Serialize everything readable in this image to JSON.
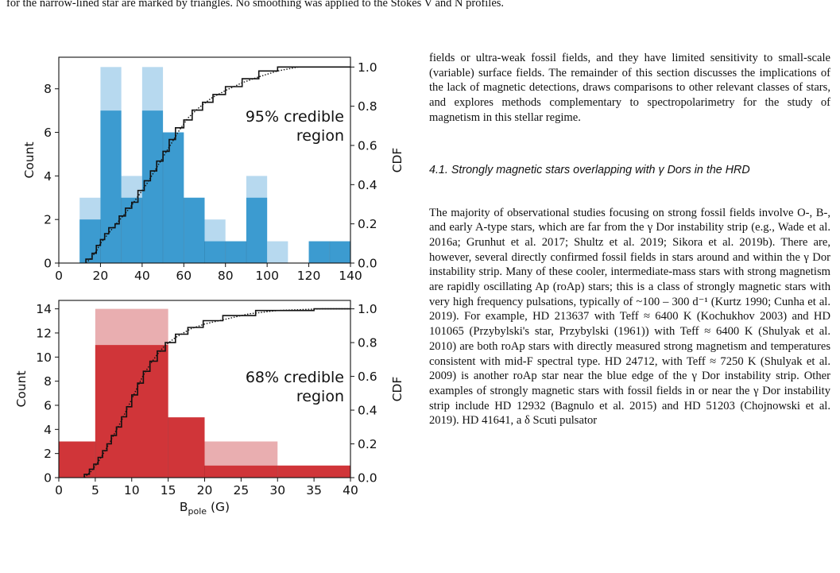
{
  "caption": "for the narrow-lined star are marked by triangles. No smoothing was applied to the Stokes V and N profiles.",
  "chart_data": [
    {
      "type": "bar",
      "panel": "top",
      "annotation": [
        "95% credible",
        "region"
      ],
      "xlabel": "",
      "ylabel": "Count",
      "y2label": "CDF",
      "xlim": [
        0,
        140
      ],
      "ylim": [
        0,
        9.45
      ],
      "y2lim": [
        0,
        1.05
      ],
      "xticks": [
        "0",
        "20",
        "40",
        "60",
        "80",
        "100",
        "120",
        "140"
      ],
      "xtickvals": [
        0,
        20,
        40,
        60,
        80,
        100,
        120,
        140
      ],
      "yticks": [
        "0",
        "2",
        "4",
        "6",
        "8"
      ],
      "ytickvals": [
        0,
        2,
        4,
        6,
        8
      ],
      "y2ticks": [
        "0.0",
        "0.2",
        "0.4",
        "0.6",
        "0.8",
        "1.0"
      ],
      "y2tickvals": [
        0,
        0.2,
        0.4,
        0.6,
        0.8,
        1.0
      ],
      "bin_edges": [
        0,
        10,
        20,
        30,
        40,
        50,
        60,
        70,
        80,
        90,
        100,
        110,
        120,
        130,
        140
      ],
      "series": [
        {
          "values": [
            0,
            3,
            9,
            4,
            9,
            6,
            3,
            2,
            1,
            4,
            1,
            0,
            1,
            1
          ],
          "color": "#b7d9ef"
        },
        {
          "values": [
            0,
            2,
            7,
            3,
            7,
            6,
            3,
            1,
            1,
            3,
            0,
            0,
            1,
            1
          ],
          "color": "#3c9bd0"
        }
      ],
      "cdf_solid": [
        [
          13,
          0
        ],
        [
          13,
          0.02
        ],
        [
          16,
          0.02
        ],
        [
          16,
          0.05
        ],
        [
          18,
          0.05
        ],
        [
          18,
          0.09
        ],
        [
          20,
          0.09
        ],
        [
          20,
          0.12
        ],
        [
          22,
          0.12
        ],
        [
          22,
          0.15
        ],
        [
          24,
          0.15
        ],
        [
          24,
          0.18
        ],
        [
          27,
          0.18
        ],
        [
          27,
          0.2
        ],
        [
          29,
          0.2
        ],
        [
          29,
          0.24
        ],
        [
          32,
          0.24
        ],
        [
          32,
          0.28
        ],
        [
          35,
          0.28
        ],
        [
          35,
          0.31
        ],
        [
          38,
          0.31
        ],
        [
          38,
          0.37
        ],
        [
          41,
          0.37
        ],
        [
          41,
          0.42
        ],
        [
          44,
          0.42
        ],
        [
          44,
          0.47
        ],
        [
          47,
          0.47
        ],
        [
          47,
          0.52
        ],
        [
          50,
          0.52
        ],
        [
          50,
          0.57
        ],
        [
          53,
          0.57
        ],
        [
          53,
          0.63
        ],
        [
          56,
          0.63
        ],
        [
          56,
          0.69
        ],
        [
          60,
          0.69
        ],
        [
          60,
          0.73
        ],
        [
          64,
          0.73
        ],
        [
          64,
          0.78
        ],
        [
          69,
          0.78
        ],
        [
          69,
          0.82
        ],
        [
          74,
          0.82
        ],
        [
          74,
          0.86
        ],
        [
          80,
          0.86
        ],
        [
          80,
          0.9
        ],
        [
          88,
          0.9
        ],
        [
          88,
          0.94
        ],
        [
          96,
          0.94
        ],
        [
          96,
          0.98
        ],
        [
          105,
          0.98
        ],
        [
          105,
          1.0
        ],
        [
          140,
          1.0
        ]
      ],
      "cdf_dotted": [
        [
          13,
          0
        ],
        [
          15,
          0.02
        ],
        [
          18,
          0.06
        ],
        [
          20,
          0.1
        ],
        [
          23,
          0.14
        ],
        [
          26,
          0.18
        ],
        [
          30,
          0.23
        ],
        [
          34,
          0.28
        ],
        [
          38,
          0.34
        ],
        [
          42,
          0.4
        ],
        [
          46,
          0.47
        ],
        [
          50,
          0.54
        ],
        [
          54,
          0.61
        ],
        [
          58,
          0.68
        ],
        [
          62,
          0.74
        ],
        [
          67,
          0.79
        ],
        [
          73,
          0.84
        ],
        [
          80,
          0.88
        ],
        [
          88,
          0.92
        ],
        [
          96,
          0.95
        ],
        [
          105,
          0.98
        ],
        [
          115,
          1.0
        ],
        [
          140,
          1.0
        ]
      ]
    },
    {
      "type": "bar",
      "panel": "bottom",
      "annotation": [
        "68% credible",
        "region"
      ],
      "xlabel": "B_pole (G)",
      "ylabel": "Count",
      "y2label": "CDF",
      "xlim": [
        0,
        40
      ],
      "ylim": [
        0,
        14.7
      ],
      "y2lim": [
        0,
        1.05
      ],
      "xticks": [
        "0",
        "5",
        "10",
        "15",
        "20",
        "25",
        "30",
        "35",
        "40"
      ],
      "xtickvals": [
        0,
        5,
        10,
        15,
        20,
        25,
        30,
        35,
        40
      ],
      "yticks": [
        "0",
        "2",
        "4",
        "6",
        "8",
        "10",
        "12",
        "14"
      ],
      "ytickvals": [
        0,
        2,
        4,
        6,
        8,
        10,
        12,
        14
      ],
      "y2ticks": [
        "0.0",
        "0.2",
        "0.4",
        "0.6",
        "0.8",
        "1.0"
      ],
      "y2tickvals": [
        0,
        0.2,
        0.4,
        0.6,
        0.8,
        1.0
      ],
      "bin_edges": [
        0,
        5,
        15,
        20,
        30,
        40
      ],
      "series": [
        {
          "values": [
            3,
            14,
            5,
            3,
            1
          ],
          "color": "#e9aeb0"
        },
        {
          "values": [
            3,
            11,
            5,
            1,
            1
          ],
          "color": "#d03539"
        }
      ],
      "step_overlay": {
        "edges": [
          20,
          25,
          30
        ],
        "values": [
          1,
          2
        ]
      },
      "cdf_solid": [
        [
          3.5,
          0
        ],
        [
          3.5,
          0.02
        ],
        [
          4.2,
          0.02
        ],
        [
          4.2,
          0.05
        ],
        [
          4.8,
          0.05
        ],
        [
          4.8,
          0.08
        ],
        [
          5.4,
          0.08
        ],
        [
          5.4,
          0.12
        ],
        [
          6,
          0.12
        ],
        [
          6,
          0.16
        ],
        [
          6.6,
          0.16
        ],
        [
          6.6,
          0.2
        ],
        [
          7.2,
          0.2
        ],
        [
          7.2,
          0.25
        ],
        [
          7.9,
          0.25
        ],
        [
          7.9,
          0.3
        ],
        [
          8.6,
          0.3
        ],
        [
          8.6,
          0.36
        ],
        [
          9.3,
          0.36
        ],
        [
          9.3,
          0.42
        ],
        [
          10,
          0.42
        ],
        [
          10,
          0.49
        ],
        [
          10.8,
          0.49
        ],
        [
          10.8,
          0.56
        ],
        [
          11.6,
          0.56
        ],
        [
          11.6,
          0.63
        ],
        [
          12.5,
          0.63
        ],
        [
          12.5,
          0.69
        ],
        [
          13.5,
          0.69
        ],
        [
          13.5,
          0.75
        ],
        [
          14.6,
          0.75
        ],
        [
          14.6,
          0.8
        ],
        [
          16,
          0.8
        ],
        [
          16,
          0.85
        ],
        [
          17.7,
          0.85
        ],
        [
          17.7,
          0.89
        ],
        [
          19.8,
          0.89
        ],
        [
          19.8,
          0.93
        ],
        [
          22.5,
          0.93
        ],
        [
          22.5,
          0.96
        ],
        [
          27,
          0.96
        ],
        [
          27,
          0.99
        ],
        [
          35,
          0.99
        ],
        [
          35,
          1.0
        ],
        [
          40,
          1.0
        ]
      ],
      "cdf_dotted": [
        [
          3.5,
          0
        ],
        [
          4.5,
          0.04
        ],
        [
          5.5,
          0.1
        ],
        [
          6.5,
          0.17
        ],
        [
          7.5,
          0.25
        ],
        [
          8.5,
          0.33
        ],
        [
          9.5,
          0.42
        ],
        [
          10.5,
          0.51
        ],
        [
          11.5,
          0.6
        ],
        [
          12.5,
          0.67
        ],
        [
          13.5,
          0.73
        ],
        [
          14.5,
          0.78
        ],
        [
          16,
          0.83
        ],
        [
          18,
          0.88
        ],
        [
          20,
          0.91
        ],
        [
          23,
          0.94
        ],
        [
          26,
          0.97
        ],
        [
          30,
          0.99
        ],
        [
          36,
          1.0
        ],
        [
          40,
          1.0
        ]
      ]
    }
  ],
  "right_column": {
    "p1": "fields or ultra-weak fossil fields, and they have limited sensitivity to small-scale (variable) surface fields. The remainder of this section discusses the implications of the lack of magnetic detections, draws comparisons to other relevant classes of stars, and explores methods complementary to spectropolarimetry for the study of magnetism in this stellar regime.",
    "section_heading": "4.1. Strongly magnetic stars overlapping with γ Dors in the HRD",
    "p2": "The majority of observational studies focusing on strong fossil fields involve O-, B-, and early A-type stars, which are far from the γ Dor instability strip (e.g., Wade et al. 2016a; Grunhut et al. 2017; Shultz et al. 2019; Sikora et al. 2019b). There are, however, several directly confirmed fossil fields in stars around and within the γ Dor instability strip. Many of these cooler, intermediate-mass stars with strong magnetism are rapidly oscillating Ap (roAp) stars; this is a class of strongly magnetic stars with very high frequency pulsations, typically of ~100 – 300 d⁻¹ (Kurtz 1990; Cunha et al. 2019). For example, HD 213637 with Teff ≈ 6400 K (Kochukhov 2003) and HD 101065 (Przybylski's star, Przybylski (1961)) with Teff ≈ 6400 K (Shulyak et al. 2010) are both roAp stars with directly measured strong magnetism and temperatures consistent with mid-F spectral type. HD 24712, with Teff ≈ 7250 K (Shulyak et al. 2009) is another roAp star near the blue edge of the γ Dor instability strip. Other examples of strongly magnetic stars with fossil fields in or near the γ Dor instability strip include HD 12932 (Bagnulo et al. 2015) and HD 51203 (Chojnowski et al. 2019). HD 41641, a δ Scuti pulsator"
  }
}
